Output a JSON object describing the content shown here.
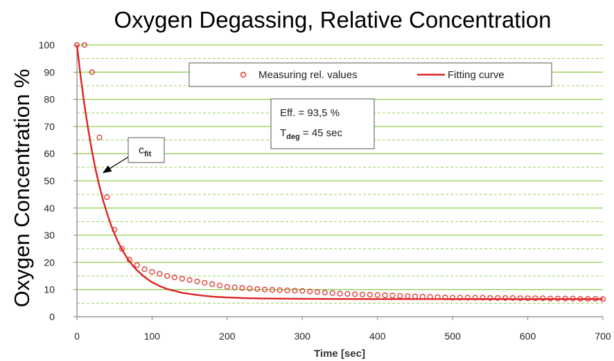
{
  "chart_data": {
    "type": "scatter",
    "title": "Oxygen Degassing, Relative Concentration",
    "xlabel": "Time [sec]",
    "ylabel": "Oxygen Concentration %",
    "xlim": [
      0,
      700
    ],
    "ylim": [
      0,
      100
    ],
    "x_ticks": [
      0,
      100,
      200,
      300,
      400,
      500,
      600,
      700
    ],
    "y_ticks": [
      0,
      10,
      20,
      30,
      40,
      50,
      60,
      70,
      80,
      90,
      100
    ],
    "grid": "horizontal dashed every 5, green",
    "legend_position": "top-center",
    "series": [
      {
        "name": "Measuring rel. values",
        "kind": "scatter",
        "color": "#e03030",
        "x": [
          0,
          10,
          20,
          30,
          40,
          50,
          60,
          70,
          80,
          90,
          100,
          110,
          120,
          130,
          140,
          150,
          160,
          170,
          180,
          190,
          200,
          210,
          220,
          230,
          240,
          250,
          260,
          270,
          280,
          290,
          300,
          310,
          320,
          330,
          340,
          350,
          360,
          370,
          380,
          390,
          400,
          410,
          420,
          430,
          440,
          450,
          460,
          470,
          480,
          490,
          500,
          510,
          520,
          530,
          540,
          550,
          560,
          570,
          580,
          590,
          600,
          610,
          620,
          630,
          640,
          650,
          660,
          670,
          680,
          690,
          700
        ],
        "y": [
          100,
          100,
          90,
          66,
          44,
          32,
          25,
          21,
          19,
          17.5,
          16.5,
          15.8,
          15,
          14.5,
          14,
          13.5,
          13,
          12.5,
          12,
          11.5,
          11,
          10.8,
          10.6,
          10.4,
          10.2,
          10,
          9.9,
          9.8,
          9.7,
          9.6,
          9.5,
          9.3,
          9.1,
          8.9,
          8.7,
          8.5,
          8.4,
          8.3,
          8.2,
          8.1,
          8,
          7.9,
          7.8,
          7.7,
          7.6,
          7.5,
          7.4,
          7.3,
          7.2,
          7.1,
          7,
          7,
          7,
          7,
          7,
          6.9,
          6.9,
          6.9,
          6.9,
          6.8,
          6.8,
          6.8,
          6.8,
          6.7,
          6.7,
          6.7,
          6.7,
          6.6,
          6.6,
          6.6,
          6.5
        ]
      },
      {
        "name": "Fitting curve",
        "kind": "line",
        "color": "#e02020",
        "x": [
          0,
          5,
          10,
          15,
          20,
          25,
          30,
          35,
          40,
          45,
          50,
          55,
          60,
          65,
          70,
          75,
          80,
          90,
          100,
          110,
          120,
          140,
          160,
          180,
          200,
          220,
          250,
          300,
          350,
          400,
          500,
          600,
          700
        ],
        "y": [
          100,
          88.3,
          78,
          68.9,
          61,
          54,
          48,
          42.7,
          38.1,
          34,
          30.5,
          27.4,
          24.7,
          22.4,
          20.4,
          18.6,
          17.1,
          14.6,
          12.7,
          11.3,
          10.2,
          8.8,
          8,
          7.4,
          7.1,
          6.9,
          6.7,
          6.6,
          6.55,
          6.52,
          6.5,
          6.5,
          6.5
        ]
      }
    ],
    "annotations": {
      "info_line1": "Eff. = 93,5 %",
      "info_line2_main": "T",
      "info_line2_sub": "deg",
      "info_line2_rest": " = 45 sec",
      "callout_main": "c",
      "callout_sub": "fit",
      "callout_arrow_target": {
        "x": 35,
        "y": 53
      }
    }
  },
  "colors": {
    "grid": "#92d050",
    "axis": "#7f7f7f",
    "marker": "#e03030",
    "curve": "#e02020"
  }
}
